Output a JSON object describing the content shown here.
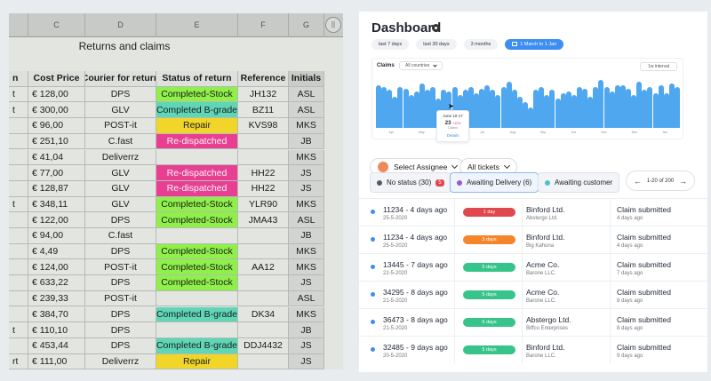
{
  "spreadsheet": {
    "column_letters": [
      "C",
      "D",
      "E",
      "F",
      "G"
    ],
    "title": "Returns and claims",
    "headers": [
      "n",
      "Cost Price",
      "Courier for return",
      "Status of return",
      "Reference",
      "Initials"
    ],
    "rows": [
      {
        "a": "t",
        "price": "€ 128,00",
        "courier": "DPS",
        "status": "Completed-Stock",
        "status_color": "green",
        "ref": "JH132",
        "init": "ASL"
      },
      {
        "a": "t",
        "price": "€ 300,00",
        "courier": "GLV",
        "status": "Completed B-grade",
        "status_color": "teal",
        "ref": "BZ11",
        "init": "ASL"
      },
      {
        "a": "",
        "price": "€ 96,00",
        "courier": "POST-it",
        "status": "Repair",
        "status_color": "yellow",
        "ref": "KVS98",
        "init": "MKS"
      },
      {
        "a": "",
        "price": "€ 251,10",
        "courier": "C.fast",
        "status": "Re-dispatched",
        "status_color": "pink",
        "ref": "",
        "init": "JB"
      },
      {
        "a": "",
        "price": "€ 41,04",
        "courier": "Deliverrz",
        "status": "",
        "status_color": "",
        "ref": "",
        "init": "MKS"
      },
      {
        "a": "",
        "price": "€ 77,00",
        "courier": "GLV",
        "status": "Re-dispatched",
        "status_color": "pink",
        "ref": "HH22",
        "init": "JS"
      },
      {
        "a": "",
        "price": "€ 128,87",
        "courier": "GLV",
        "status": "Re-dispatched",
        "status_color": "pink",
        "ref": "HH22",
        "init": "JS"
      },
      {
        "a": "t",
        "price": "€ 348,11",
        "courier": "GLV",
        "status": "Completed-Stock",
        "status_color": "green",
        "ref": "YLR90",
        "init": "MKS"
      },
      {
        "a": "",
        "price": "€ 122,00",
        "courier": "DPS",
        "status": "Completed-Stock",
        "status_color": "green",
        "ref": "JMA43",
        "init": "ASL"
      },
      {
        "a": "",
        "price": "€ 94,00",
        "courier": "C.fast",
        "status": "",
        "status_color": "",
        "ref": "",
        "init": "JB"
      },
      {
        "a": "",
        "price": "€ 4,49",
        "courier": "DPS",
        "status": "Completed-Stock",
        "status_color": "green",
        "ref": "",
        "init": "MKS"
      },
      {
        "a": "",
        "price": "€ 124,00",
        "courier": "POST-it",
        "status": "Completed-Stock",
        "status_color": "green",
        "ref": "AA12",
        "init": "MKS"
      },
      {
        "a": "",
        "price": "€ 633,22",
        "courier": "DPS",
        "status": "Completed-Stock",
        "status_color": "green",
        "ref": "",
        "init": "JS"
      },
      {
        "a": "",
        "price": "€ 239,33",
        "courier": "POST-it",
        "status": "",
        "status_color": "",
        "ref": "",
        "init": "ASL"
      },
      {
        "a": "",
        "price": "€ 384,70",
        "courier": "DPS",
        "status": "Completed B-grade",
        "status_color": "teal",
        "ref": "DK34",
        "init": "MKS"
      },
      {
        "a": "t",
        "price": "€ 110,10",
        "courier": "DPS",
        "status": "",
        "status_color": "",
        "ref": "",
        "init": "JB"
      },
      {
        "a": "",
        "price": "€ 453,44",
        "courier": "DPS",
        "status": "Completed B-grade",
        "status_color": "teal",
        "ref": "DDJ4432",
        "init": "JS"
      },
      {
        "a": "rt",
        "price": "€ 111,00",
        "courier": "Deliverrz",
        "status": "Repair",
        "status_color": "yellow",
        "ref": "",
        "init": "JS"
      }
    ]
  },
  "dashboard": {
    "title": "Dashboard",
    "range_tabs": [
      "last 7 days",
      "last 30 days",
      "3 months",
      "1 March to 1 Jan"
    ],
    "chart": {
      "label": "Claims",
      "country_filter": "All countries",
      "interval": "1w interval",
      "tooltip": {
        "date": "June 10-17",
        "value": "23",
        "delta": "+12%",
        "caption": "Claims",
        "link": "Details"
      }
    },
    "assignee_button": "Select Assignee",
    "tickets_button": "All tickets",
    "status_tabs": [
      {
        "label": "No status (30)",
        "badge": "5",
        "dot_color": "#555c66"
      },
      {
        "label": "Awaiting Delivery (6)",
        "badge": "",
        "dot_color": "#9b59d0"
      },
      {
        "label": "Awaiting customer",
        "badge": "",
        "dot_color": "#4fc3c9"
      }
    ],
    "pager": "1-20 of 200",
    "tickets": [
      {
        "id": "11234 - 4 days ago",
        "date": "25-5-2020",
        "badge": "1 day",
        "badge_color": "#e0484f",
        "company": "Binford Ltd.",
        "sub": "Abstergo Ltd.",
        "status": "Claim submitted",
        "ago": "4 days ago"
      },
      {
        "id": "11234 - 4 days ago",
        "date": "25-5-2020",
        "badge": "3 days",
        "badge_color": "#f5852b",
        "company": "Binford Ltd.",
        "sub": "Big Kahuna",
        "status": "Claim submitted",
        "ago": "4 days ago"
      },
      {
        "id": "13445 - 7 days ago",
        "date": "22-5-2020",
        "badge": "5 days",
        "badge_color": "#36c48a",
        "company": "Acme Co.",
        "sub": "Barone LLC.",
        "status": "Claim submitted",
        "ago": "7 days ago"
      },
      {
        "id": "34295 - 8 days ago",
        "date": "21-5-2020",
        "badge": "5 days",
        "badge_color": "#36c48a",
        "company": "Acme Co.",
        "sub": "Barone LLC.",
        "status": "Claim submitted",
        "ago": "8 days ago"
      },
      {
        "id": "36473 - 8 days ago",
        "date": "21-5-2020",
        "badge": "5 days",
        "badge_color": "#36c48a",
        "company": "Abstergo Ltd.",
        "sub": "Biffco Enterprises",
        "status": "Claim submitted",
        "ago": "8 days ago"
      },
      {
        "id": "32485 - 9 days ago",
        "date": "20-5-2020",
        "badge": "5 days",
        "badge_color": "#36c48a",
        "company": "Binford Ltd.",
        "sub": "Barone LLC.",
        "status": "Claim submitted",
        "ago": "9 days ago"
      }
    ]
  },
  "chart_data": {
    "type": "bar",
    "title": "Claims",
    "values": [
      25,
      24,
      22,
      18,
      24,
      23,
      19,
      21,
      26,
      22,
      24,
      17,
      22,
      21,
      24,
      19,
      22,
      24,
      20,
      23,
      25,
      22,
      19,
      24,
      27,
      22,
      18,
      15,
      12,
      22,
      24,
      19,
      22,
      17,
      20,
      21,
      19,
      24,
      23,
      18,
      24,
      28,
      24,
      21,
      25,
      25,
      23,
      19,
      27,
      22,
      24,
      20,
      25,
      20,
      26,
      24
    ],
    "x_tick_labels": [
      "Apr",
      "May",
      "Jun",
      "Jul",
      "Aug",
      "Sep",
      "Oct",
      "Nov",
      "Dec",
      "Jan"
    ],
    "ylim": [
      0,
      30
    ]
  }
}
